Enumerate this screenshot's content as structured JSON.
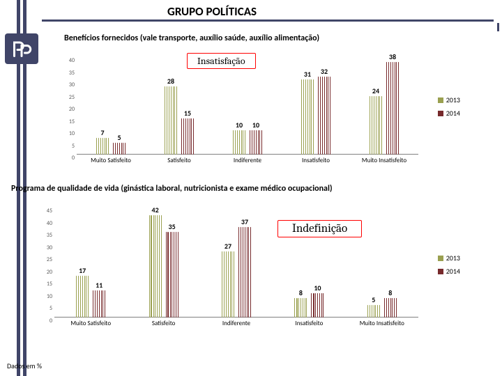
{
  "header": {
    "title": "GRUPO POLÍTICAS"
  },
  "colors": {
    "rail": "#404568",
    "series2013": "#9aa050",
    "series2014": "#772a2c",
    "chart_border": "#a6a6a6",
    "baseline": "#808080",
    "label_border": "#ff0000"
  },
  "legend": [
    {
      "label": "2013",
      "color": "#9aa050"
    },
    {
      "label": "2014",
      "color": "#772a2c"
    }
  ],
  "chart1": {
    "subtitle": "Benefícios fornecidos (vale transporte, auxílio saúde, auxílio alimentação)",
    "callout": "Insatisfação",
    "ylim": [
      0,
      40
    ],
    "ytick_step": 5,
    "categories": [
      "Muito Satisfeito",
      "Satisfeito",
      "Indiferente",
      "Insatisfeito",
      "Muito Insatisfeito"
    ],
    "series": {
      "2013": [
        7,
        28,
        10,
        31,
        24
      ],
      "2014": [
        5,
        15,
        10,
        32,
        38
      ]
    }
  },
  "chart2": {
    "subtitle": "Programa de qualidade de vida (ginástica laboral, nutricionista e exame médico ocupacional)",
    "callout": "Indefinição",
    "ylim": [
      0,
      45
    ],
    "ytick_step": 5,
    "categories": [
      "Muito Satisfeito",
      "Satisfeito",
      "Indiferente",
      "Insatisfeito",
      "Muito Insatisfeito"
    ],
    "series": {
      "2013": [
        17,
        42,
        27,
        8,
        5
      ],
      "2014": [
        11,
        35,
        37,
        10,
        8
      ]
    }
  },
  "footnote": "Dados em %"
}
